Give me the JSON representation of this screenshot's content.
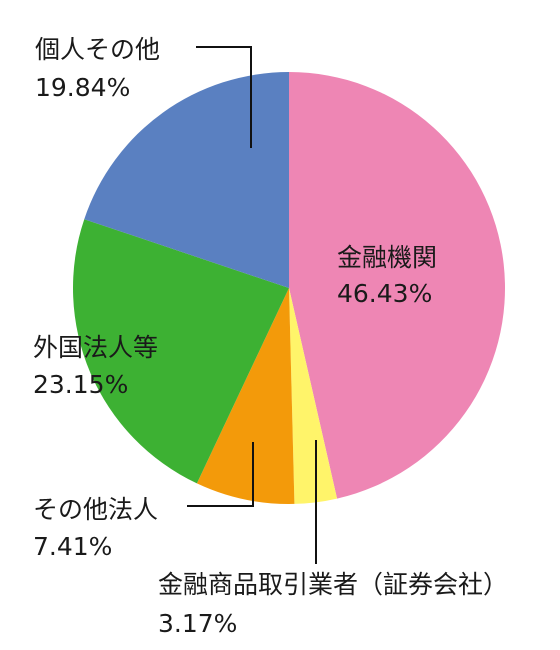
{
  "chart_data": {
    "type": "pie",
    "title": "",
    "start": "12 o'clock",
    "direction": "clockwise",
    "legend": "none",
    "slices": [
      {
        "label": "金融機関",
        "value": 46.43,
        "display": "46.43%",
        "color": "#ee86b4"
      },
      {
        "label": "金融商品取引業者（証券会社）",
        "value": 3.17,
        "display": "3.17%",
        "color": "#fff46a"
      },
      {
        "label": "その他法人",
        "value": 7.41,
        "display": "7.41%",
        "color": "#f39a0a"
      },
      {
        "label": "外国法人等",
        "value": 23.15,
        "display": "23.15%",
        "color": "#3db133"
      },
      {
        "label": "個人その他",
        "value": 19.84,
        "display": "19.84%",
        "color": "#5a80c1"
      }
    ]
  }
}
